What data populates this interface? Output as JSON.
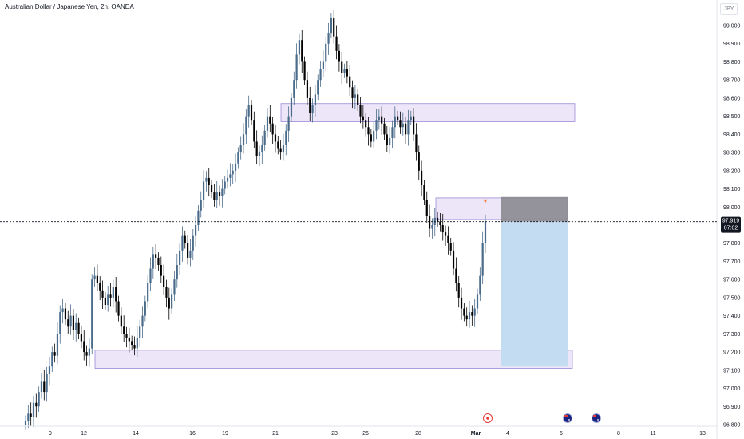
{
  "header": {
    "title": "Australian Dollar / Japanese Yen, 2h, OANDA"
  },
  "currency_button": "JPY",
  "price_tag": {
    "price": "97.919",
    "countdown": "07:02"
  },
  "colors": {
    "up": "#4a6b8a",
    "down": "#000000",
    "zone_fill": "#ede6f8",
    "zone_stroke": "#9c8ad6",
    "target_fill": "#c3dcf2",
    "stop_fill": "#8a8890",
    "tag_bg": "#131722"
  },
  "event_icons": [
    "earnings-icon",
    "australia-flag-icon",
    "australia-flag-icon"
  ],
  "chart_data": {
    "type": "candlestick",
    "title": "Australian Dollar / Japanese Yen, 2h, OANDA",
    "xlabel": "",
    "ylabel": "",
    "ylim": [
      96.8,
      99.1
    ],
    "y_ticks": [
      "99.000",
      "98.900",
      "98.800",
      "98.700",
      "98.600",
      "98.500",
      "98.400",
      "98.300",
      "98.200",
      "98.100",
      "98.000",
      "97.900",
      "97.800",
      "97.700",
      "97.600",
      "97.500",
      "97.400",
      "97.300",
      "97.200",
      "97.100",
      "97.000",
      "96.900",
      "96.800"
    ],
    "x_ticks": [
      "9",
      "12",
      "14",
      "16",
      "19",
      "21",
      "23",
      "26",
      "28",
      "Mar",
      "4",
      "6",
      "8",
      "11",
      "13"
    ],
    "last_price": 97.919,
    "zones": [
      {
        "name": "resistance",
        "from": 98.47,
        "to": 98.57
      },
      {
        "name": "supply",
        "from": 97.93,
        "to": 98.05
      },
      {
        "name": "support",
        "from": 97.11,
        "to": 97.21
      }
    ],
    "short_position": {
      "entry": 97.919,
      "stop": 98.055,
      "target": 97.12
    },
    "series": [
      {
        "name": "AUDJPY",
        "closes": [
          96.82,
          96.86,
          96.84,
          96.92,
          96.9,
          96.98,
          97.04,
          96.98,
          97.08,
          97.12,
          97.2,
          97.18,
          97.3,
          97.42,
          97.44,
          97.38,
          97.34,
          97.4,
          97.32,
          97.36,
          97.3,
          97.26,
          97.2,
          97.18,
          97.22,
          97.6,
          97.62,
          97.58,
          97.54,
          97.5,
          97.46,
          97.52,
          97.5,
          97.56,
          97.48,
          97.4,
          97.34,
          97.3,
          97.28,
          97.26,
          97.24,
          97.22,
          97.28,
          97.34,
          97.4,
          97.48,
          97.58,
          97.66,
          97.74,
          97.72,
          97.68,
          97.62,
          97.56,
          97.5,
          97.44,
          97.52,
          97.6,
          97.68,
          97.76,
          97.84,
          97.8,
          97.72,
          97.76,
          97.84,
          97.9,
          97.98,
          98.04,
          98.14,
          98.16,
          98.12,
          98.08,
          98.04,
          98.08,
          98.06,
          98.1,
          98.14,
          98.16,
          98.18,
          98.2,
          98.24,
          98.3,
          98.34,
          98.4,
          98.5,
          98.56,
          98.48,
          98.36,
          98.28,
          98.3,
          98.34,
          98.42,
          98.5,
          98.46,
          98.4,
          98.36,
          98.32,
          98.3,
          98.34,
          98.42,
          98.5,
          98.6,
          98.7,
          98.84,
          98.92,
          98.8,
          98.7,
          98.6,
          98.52,
          98.56,
          98.62,
          98.7,
          98.76,
          98.8,
          98.9,
          98.96,
          99.04,
          98.94,
          98.86,
          98.8,
          98.74,
          98.76,
          98.72,
          98.66,
          98.6,
          98.62,
          98.56,
          98.5,
          98.48,
          98.44,
          98.4,
          98.36,
          98.42,
          98.48,
          98.5,
          98.46,
          98.4,
          98.34,
          98.38,
          98.44,
          98.5,
          98.48,
          98.44,
          98.46,
          98.4,
          98.48,
          98.5,
          98.4,
          98.3,
          98.2,
          98.12,
          98.04,
          97.95,
          97.88,
          97.9,
          97.94,
          97.92,
          97.9,
          97.86,
          97.84,
          97.8,
          97.76,
          97.66,
          97.58,
          97.5,
          97.44,
          97.4,
          97.38,
          97.42,
          97.4,
          97.44,
          97.52,
          97.62,
          97.8,
          97.92
        ]
      }
    ]
  }
}
